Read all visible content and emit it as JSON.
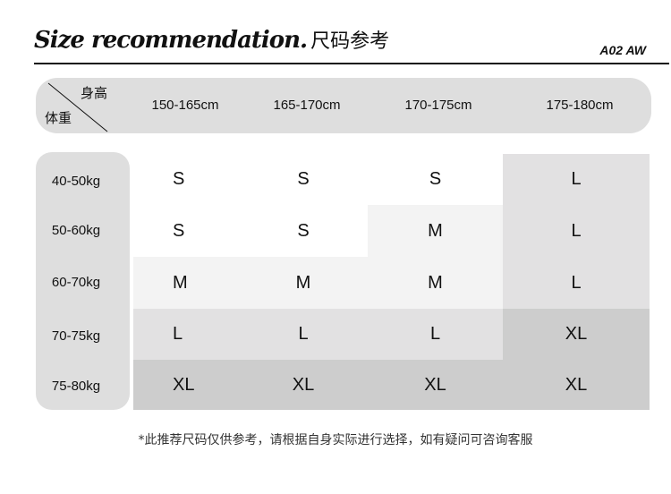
{
  "title": "Size recommendation.",
  "title_cn": "尺码参考",
  "code": "A02 AW",
  "corner": {
    "height_label": "身高",
    "weight_label": "体重"
  },
  "heights": [
    "150-165cm",
    "165-170cm",
    "170-175cm",
    "175-180cm"
  ],
  "weights": [
    "40-50kg",
    "50-60kg",
    "60-70kg",
    "70-75kg",
    "75-80kg"
  ],
  "sizes": [
    [
      "S",
      "S",
      "S",
      "L"
    ],
    [
      "S",
      "S",
      "M",
      "L"
    ],
    [
      "M",
      "M",
      "M",
      "L"
    ],
    [
      "L",
      "L",
      "L",
      "XL"
    ],
    [
      "XL",
      "XL",
      "XL",
      "XL"
    ]
  ],
  "size_colors": {
    "S": "#ffffff",
    "M": "#f3f3f3",
    "L": "#e2e1e2",
    "XL": "#cdcdcd"
  },
  "note": "*此推荐尺码仅供参考，请根据自身实际进行选择，如有疑问可咨询客服"
}
